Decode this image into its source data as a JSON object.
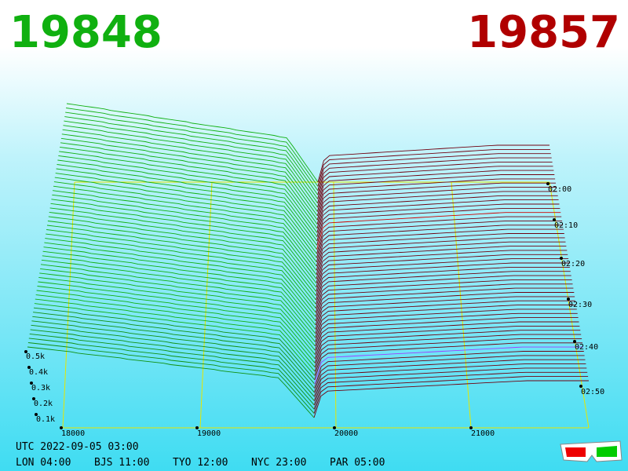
{
  "header": {
    "bid": "19848",
    "ask": "19857"
  },
  "axes": {
    "price_labels": [
      "18000",
      "19000",
      "20000",
      "21000"
    ],
    "depth_labels": [
      "0.5k",
      "0.4k",
      "0.3k",
      "0.2k",
      "0.1k"
    ],
    "time_labels": [
      "02:00",
      "02:10",
      "02:20",
      "02:30",
      "02:40",
      "02:50"
    ]
  },
  "footer": {
    "utc": "UTC 2022-09-05 03:00",
    "zones": [
      "LON 04:00",
      "BJS 11:00",
      "TYO 12:00",
      "NYC 23:00",
      "PAR 05:00"
    ]
  }
}
